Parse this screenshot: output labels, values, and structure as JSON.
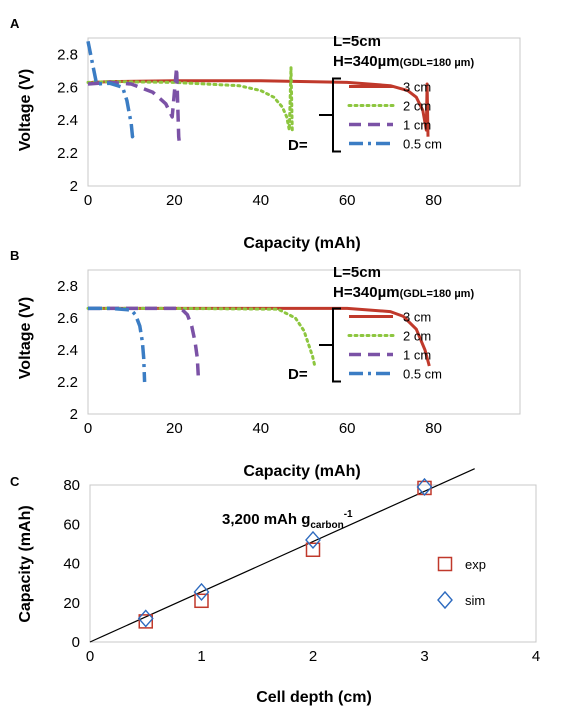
{
  "chart_data": [
    {
      "panel": "A",
      "type": "line",
      "xlabel": "Capacity (mAh)",
      "ylabel": "Voltage (V)",
      "xlim": [
        0,
        100
      ],
      "ylim": [
        2,
        2.9
      ],
      "xticks": [
        "0",
        "20",
        "40",
        "60",
        "80"
      ],
      "yticks": [
        "2",
        "2.2",
        "2.4",
        "2.6",
        "2.8"
      ],
      "annotation": {
        "L": "L=5cm",
        "H_main": "H=340µm",
        "H_sub": "(GDL=180 µm)",
        "D": "D="
      },
      "legend_position": "right",
      "series": [
        {
          "name": "3 cm",
          "color": "#c0392b",
          "style": "solid",
          "x": [
            0,
            1,
            5,
            20,
            40,
            60,
            70,
            74,
            76,
            77.5,
            78.3,
            78.5,
            78.7
          ],
          "y": [
            2.62,
            2.63,
            2.635,
            2.64,
            2.64,
            2.63,
            2.61,
            2.58,
            2.54,
            2.46,
            2.34,
            2.62,
            2.3
          ]
        },
        {
          "name": "2 cm",
          "color": "#8dc63f",
          "style": "dotted",
          "x": [
            0,
            5,
            20,
            35,
            40,
            43,
            45,
            46,
            46.6,
            47,
            47.3
          ],
          "y": [
            2.63,
            2.635,
            2.63,
            2.61,
            2.58,
            2.54,
            2.48,
            2.42,
            2.34,
            2.72,
            2.33
          ]
        },
        {
          "name": "1 cm",
          "color": "#7b52a6",
          "style": "dashed",
          "x": [
            0,
            5,
            10,
            15,
            18,
            19.5,
            20.5,
            21,
            21.2
          ],
          "y": [
            2.62,
            2.63,
            2.62,
            2.57,
            2.5,
            2.42,
            2.72,
            2.3,
            2.25
          ]
        },
        {
          "name": "0.5 cm",
          "color": "#3b7dc4",
          "style": "dashdot",
          "x": [
            0,
            2,
            5,
            8,
            9,
            9.5,
            10,
            10.3,
            10.6
          ],
          "y": [
            2.88,
            2.62,
            2.625,
            2.6,
            2.52,
            2.45,
            2.38,
            2.3,
            2.33
          ]
        }
      ]
    },
    {
      "panel": "B",
      "type": "line",
      "xlabel": "Capacity (mAh)",
      "ylabel": "Voltage (V)",
      "xlim": [
        0,
        100
      ],
      "ylim": [
        2,
        2.9
      ],
      "xticks": [
        "0",
        "20",
        "40",
        "60",
        "80"
      ],
      "yticks": [
        "2",
        "2.2",
        "2.4",
        "2.6",
        "2.8"
      ],
      "annotation": {
        "L": "L=5cm",
        "H_main": "H=340µm",
        "H_sub": "(GDL=180 µm)",
        "D": "D="
      },
      "legend_position": "right",
      "series": [
        {
          "name": "3 cm",
          "color": "#c0392b",
          "style": "solid",
          "x": [
            0,
            20,
            40,
            60,
            70,
            73,
            76,
            78,
            79
          ],
          "y": [
            2.66,
            2.66,
            2.66,
            2.66,
            2.64,
            2.61,
            2.53,
            2.4,
            2.3
          ]
        },
        {
          "name": "2 cm",
          "color": "#8dc63f",
          "style": "dotted",
          "x": [
            0,
            20,
            44,
            48,
            50,
            51,
            52,
            52.5
          ],
          "y": [
            2.66,
            2.66,
            2.655,
            2.6,
            2.52,
            2.44,
            2.36,
            2.3
          ]
        },
        {
          "name": "1 cm",
          "color": "#7b52a6",
          "style": "dashed",
          "x": [
            0,
            10,
            21.5,
            23,
            24,
            24.8,
            25.3,
            25.6
          ],
          "y": [
            2.66,
            2.66,
            2.66,
            2.62,
            2.55,
            2.45,
            2.35,
            2.2
          ]
        },
        {
          "name": "0.5 cm",
          "color": "#3b7dc4",
          "style": "dashdot",
          "x": [
            0,
            5,
            10,
            11,
            12,
            12.6,
            12.9,
            13.1
          ],
          "y": [
            2.66,
            2.66,
            2.65,
            2.62,
            2.55,
            2.45,
            2.35,
            2.2
          ]
        }
      ]
    },
    {
      "panel": "C",
      "type": "scatter",
      "xlabel": "Cell depth (cm)",
      "ylabel": "Capacity (mAh)",
      "xlim": [
        0,
        4
      ],
      "ylim": [
        0,
        80
      ],
      "xticks": [
        "0",
        "1",
        "2",
        "3",
        "4"
      ],
      "yticks": [
        "0",
        "20",
        "40",
        "60",
        "80"
      ],
      "fit_label": {
        "main": "3,200 mAh g",
        "sub": "carbon",
        "sup": "-1"
      },
      "fit_line": {
        "x": [
          0,
          3.45
        ],
        "y": [
          0,
          88.3
        ]
      },
      "legend_position": "right",
      "series": [
        {
          "name": "exp",
          "color": "#c0392b",
          "marker": "square",
          "x": [
            0.5,
            1,
            2,
            3
          ],
          "y": [
            10.5,
            21,
            47,
            78.5
          ]
        },
        {
          "name": "sim",
          "color": "#2e6bbf",
          "marker": "diamond",
          "x": [
            0.5,
            1,
            2,
            3
          ],
          "y": [
            12,
            25.5,
            52,
            79
          ]
        }
      ]
    }
  ]
}
